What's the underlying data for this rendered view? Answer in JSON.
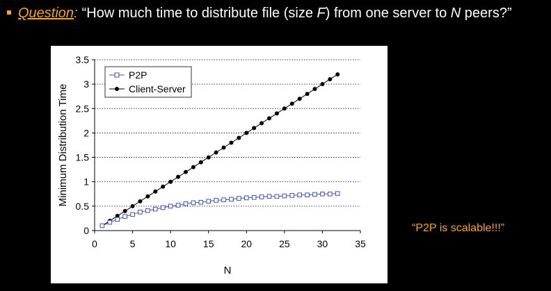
{
  "question": {
    "label": "Question",
    "colon": ":",
    "text_1": "“How much time to distribute file (size ",
    "var_f": "F",
    "text_2": ") from one server to ",
    "var_n": "N",
    "text_3": "  peers?”"
  },
  "callout": "“P2P is scalable!!!”",
  "colors": {
    "accent": "#f5a623",
    "p2p": "#3d4fb0",
    "client_server": "#000000"
  },
  "chart_data": {
    "type": "line",
    "title": "",
    "xlabel": "N",
    "ylabel": "Minimum Distribution Time",
    "xlim": [
      0,
      35
    ],
    "ylim": [
      0,
      3.5
    ],
    "xticks": [
      0,
      5,
      10,
      15,
      20,
      25,
      30,
      35
    ],
    "yticks": [
      0,
      0.5,
      1,
      1.5,
      2,
      2.5,
      3,
      3.5
    ],
    "grid": "horizontal dotted",
    "legend": "top-left",
    "x": [
      1,
      2,
      3,
      4,
      5,
      6,
      7,
      8,
      9,
      10,
      11,
      12,
      13,
      14,
      15,
      16,
      17,
      18,
      19,
      20,
      21,
      22,
      23,
      24,
      25,
      26,
      27,
      28,
      29,
      30,
      31,
      32
    ],
    "series": [
      {
        "name": "P2P",
        "marker": "open-square",
        "values": [
          0.1,
          0.17,
          0.23,
          0.29,
          0.33,
          0.38,
          0.41,
          0.44,
          0.47,
          0.5,
          0.52,
          0.55,
          0.57,
          0.58,
          0.6,
          0.62,
          0.63,
          0.64,
          0.66,
          0.67,
          0.68,
          0.69,
          0.7,
          0.7,
          0.71,
          0.72,
          0.73,
          0.73,
          0.74,
          0.75,
          0.75,
          0.76
        ]
      },
      {
        "name": "Client-Server",
        "marker": "filled-circle",
        "values": [
          0.1,
          0.2,
          0.3,
          0.4,
          0.5,
          0.6,
          0.7,
          0.8,
          0.9,
          1.0,
          1.1,
          1.2,
          1.3,
          1.4,
          1.5,
          1.6,
          1.7,
          1.8,
          1.9,
          2.0,
          2.1,
          2.2,
          2.3,
          2.4,
          2.5,
          2.6,
          2.7,
          2.8,
          2.9,
          3.0,
          3.1,
          3.2
        ]
      }
    ]
  }
}
